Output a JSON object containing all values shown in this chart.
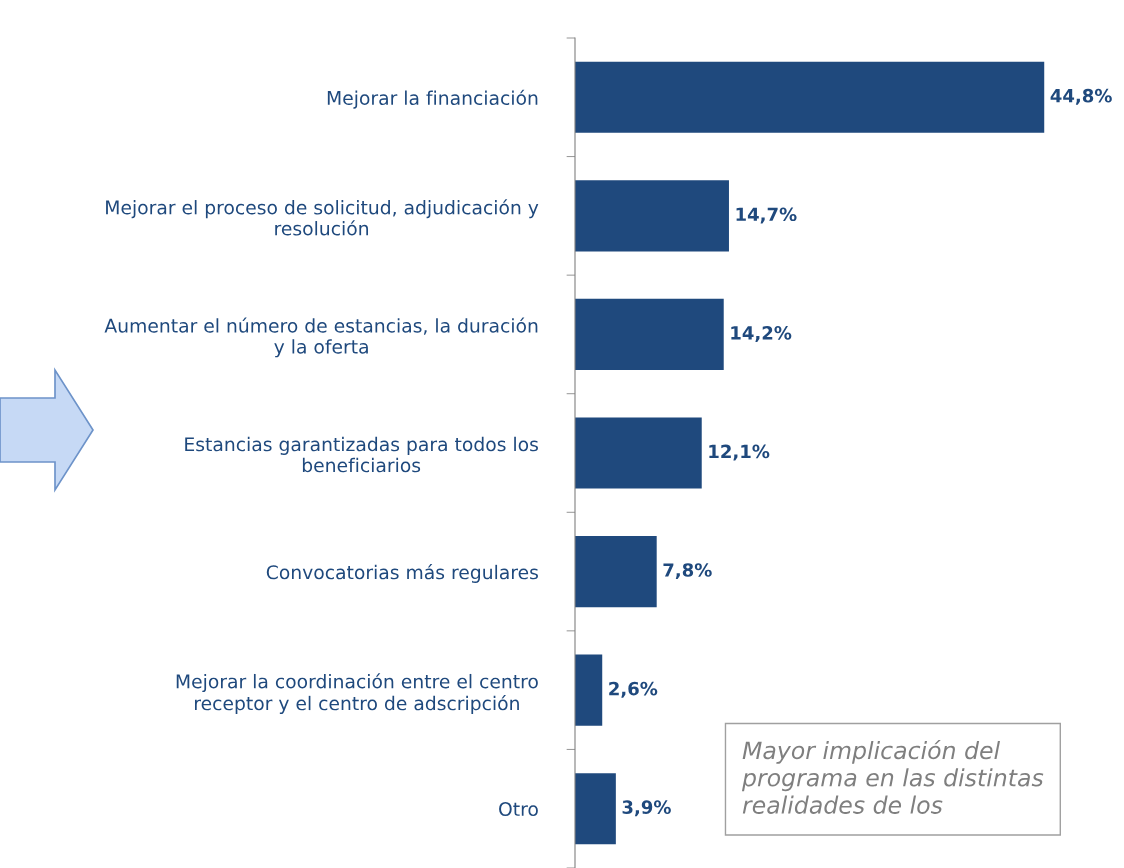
{
  "chart_data": {
    "type": "bar",
    "orientation": "horizontal",
    "categories": [
      "Mejorar la financiación",
      "Mejorar el proceso de solicitud, adjudicación y\nresolución",
      "Aumentar el número de estancias, la duración\ny la oferta",
      "Estancias garantizadas para todos los\nbeneficiarios",
      "Convocatorias más regulares",
      "Mejorar la coordinación entre el centro\nreceptor y el centro de adscripción",
      "Otro"
    ],
    "values": [
      44.8,
      14.7,
      14.2,
      12.1,
      7.8,
      2.6,
      3.9
    ],
    "value_labels": [
      "44,8%",
      "14,7%",
      "14,2%",
      "12,1%",
      "7,8%",
      "2,6%",
      "3,9%"
    ],
    "color": "#1f497d",
    "annotations": [
      "Mayor implicación del\nprograma en las distintas\nrealidades de los"
    ],
    "tick_labels": "y",
    "grid": false,
    "legend": false
  }
}
